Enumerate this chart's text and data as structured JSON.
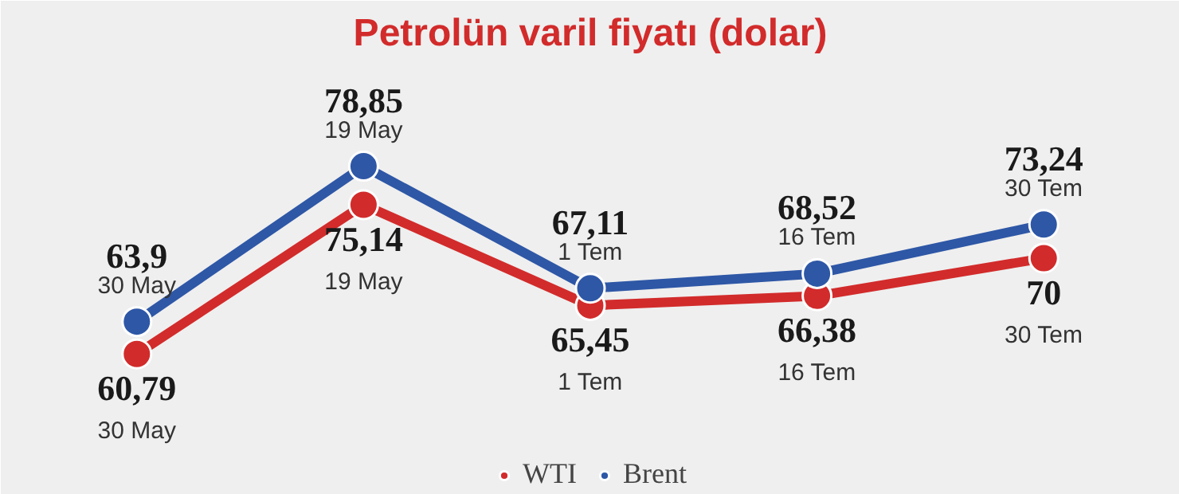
{
  "chart_data": {
    "type": "line",
    "title": "Petrolün varil fiyatı (dolar)",
    "categories": [
      "30 May",
      "19 May",
      "1 Tem",
      "16 Tem",
      "30 Tem"
    ],
    "series": [
      {
        "name": "WTI",
        "color": "#d22b2b",
        "values": [
          60.79,
          75.14,
          65.45,
          66.38,
          70
        ],
        "value_labels": [
          "60,79",
          "75,14",
          "65,45",
          "66,38",
          "70"
        ]
      },
      {
        "name": "Brent",
        "color": "#2e57a6",
        "values": [
          63.9,
          78.85,
          67.11,
          68.52,
          73.24
        ],
        "value_labels": [
          "63,9",
          "78,85",
          "67,11",
          "68,52",
          "73,24"
        ]
      }
    ],
    "marker": "circle",
    "line_style": "solid",
    "legend": "bottom",
    "grid": false
  }
}
